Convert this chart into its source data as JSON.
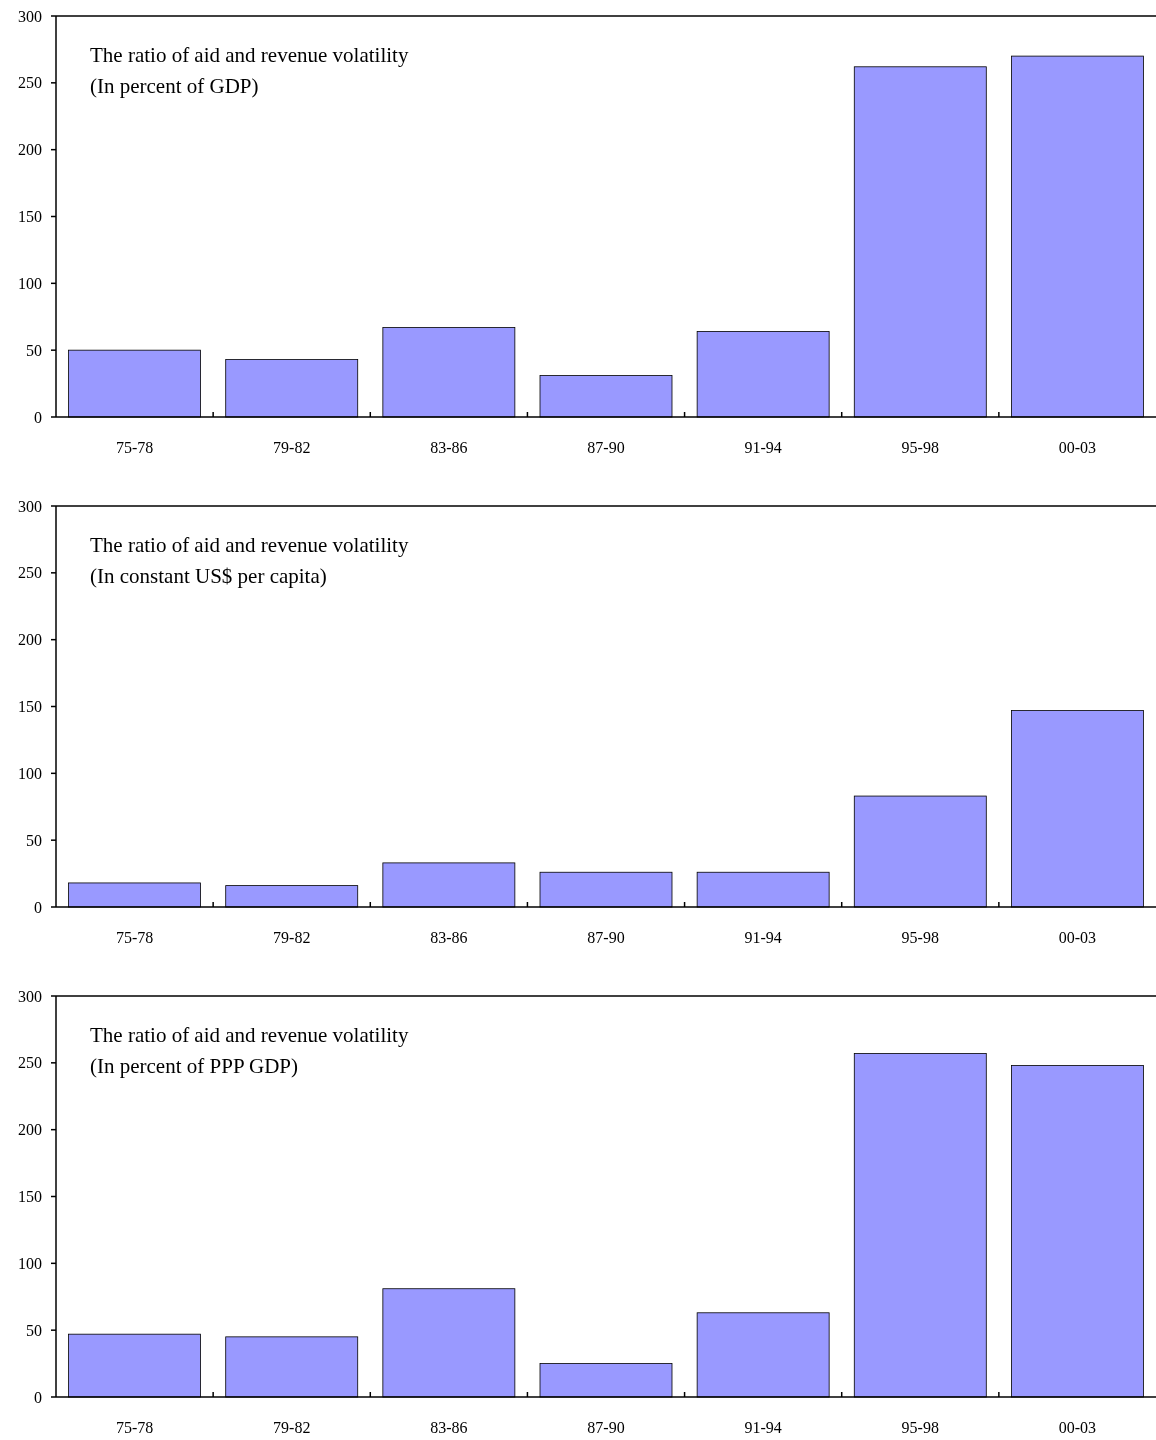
{
  "chart_data": [
    {
      "type": "bar",
      "title": "The ratio of aid and revenue volatility",
      "subtitle": "(In percent of GDP)",
      "categories": [
        "75-78",
        "79-82",
        "83-86",
        "87-90",
        "91-94",
        "95-98",
        "00-03"
      ],
      "values": [
        50,
        43,
        67,
        31,
        64,
        262,
        270
      ],
      "color": "#9999ff",
      "ylim": [
        0,
        300
      ],
      "yticks": [
        0,
        50,
        100,
        150,
        200,
        250,
        300
      ],
      "grid": false
    },
    {
      "type": "bar",
      "title": "The ratio of aid and revenue volatility",
      "subtitle": "(In constant US$ per capita)",
      "categories": [
        "75-78",
        "79-82",
        "83-86",
        "87-90",
        "91-94",
        "95-98",
        "00-03"
      ],
      "values": [
        18,
        16,
        33,
        26,
        26,
        83,
        147
      ],
      "color": "#9999ff",
      "ylim": [
        0,
        300
      ],
      "yticks": [
        0,
        50,
        100,
        150,
        200,
        250,
        300
      ],
      "grid": false
    },
    {
      "type": "bar",
      "title": "The ratio of aid and revenue volatility",
      "subtitle": "(In percent of PPP GDP)",
      "categories": [
        "75-78",
        "79-82",
        "83-86",
        "87-90",
        "91-94",
        "95-98",
        "00-03"
      ],
      "values": [
        47,
        45,
        81,
        25,
        63,
        257,
        248
      ],
      "color": "#9999ff",
      "ylim": [
        0,
        300
      ],
      "yticks": [
        0,
        50,
        100,
        150,
        200,
        250,
        300
      ],
      "grid": false
    }
  ]
}
